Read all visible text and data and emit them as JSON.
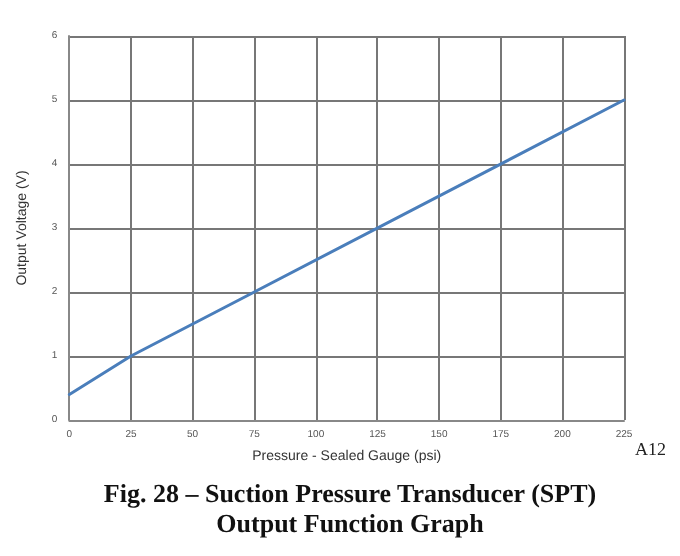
{
  "chart_data": {
    "type": "line",
    "title": "Fig. 28 – Suction Pressure Transducer (SPT)\nOutput Function Graph",
    "xlabel": "Pressure - Sealed Gauge (psi)",
    "ylabel": "Output Voltage (V)",
    "x": [
      0,
      25,
      225
    ],
    "series": [
      {
        "color": "#4a7ebb",
        "values": [
          0.4,
          1,
          5
        ]
      }
    ],
    "xlim": [
      0,
      225
    ],
    "xticks": [
      0,
      25,
      50,
      75,
      100,
      125,
      150,
      175,
      200,
      225
    ],
    "ylim": [
      0,
      6
    ],
    "yticks": [
      0,
      1,
      2,
      3,
      4,
      5,
      6
    ],
    "grid": true,
    "marker": "none",
    "line_style": "solid",
    "annotations": [
      "A12"
    ]
  }
}
